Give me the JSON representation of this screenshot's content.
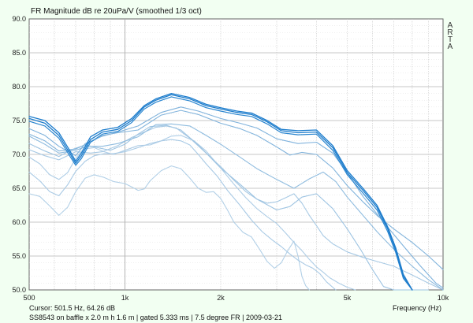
{
  "chart_data": {
    "type": "line",
    "title": "FR Magnitude dB re 20uPa/V (smoothed 1/3 oct)",
    "xlabel": "Frequency (Hz)",
    "ylabel": "",
    "xscale": "log",
    "xlim": [
      500,
      10000
    ],
    "ylim": [
      50,
      90
    ],
    "grid": true,
    "x_tick_labels": [
      {
        "v": 500,
        "label": "500"
      },
      {
        "v": 1000,
        "label": "1k"
      },
      {
        "v": 2000,
        "label": "2k"
      },
      {
        "v": 5000,
        "label": "5k"
      },
      {
        "v": 10000,
        "label": "10k"
      }
    ],
    "y_tick_labels": [
      {
        "v": 90,
        "label": "90.0"
      },
      {
        "v": 85,
        "label": "85.0"
      },
      {
        "v": 80,
        "label": "80.0"
      },
      {
        "v": 75,
        "label": "75.0"
      },
      {
        "v": 70,
        "label": "70.0"
      },
      {
        "v": 65,
        "label": "65.0"
      },
      {
        "v": 60,
        "label": "60.0"
      },
      {
        "v": 55,
        "label": "55.0"
      },
      {
        "v": 50,
        "label": "50.0"
      }
    ],
    "series": [
      {
        "color": "#1c7ccc",
        "width": 1.3,
        "x": [
          500,
          560,
          620,
          670,
          700,
          730,
          780,
          850,
          950,
          1050,
          1150,
          1250,
          1400,
          1600,
          1800,
          2000,
          2250,
          2500,
          2800,
          3100,
          3500,
          4000,
          4500,
          5000,
          5600,
          6200,
          6700,
          7100,
          7500,
          8000
        ],
        "y": [
          75.6,
          75.0,
          73.2,
          70.6,
          69.0,
          70.2,
          72.6,
          73.6,
          74.0,
          75.3,
          77.2,
          78.2,
          79.0,
          78.4,
          77.4,
          76.9,
          76.4,
          76.1,
          75.0,
          73.7,
          73.5,
          73.6,
          71.3,
          67.6,
          65.0,
          62.5,
          59.3,
          56.2,
          52.3,
          49.5
        ]
      },
      {
        "color": "#1c7ccc",
        "width": 1.3,
        "x": [
          500,
          560,
          620,
          670,
          700,
          730,
          780,
          850,
          950,
          1050,
          1150,
          1250,
          1400,
          1600,
          1800,
          2000,
          2250,
          2500,
          2800,
          3100,
          3500,
          4000,
          4500,
          5000,
          5600,
          6200,
          6700,
          7100,
          7500,
          8000
        ],
        "y": [
          75.3,
          74.6,
          72.8,
          70.2,
          68.7,
          69.8,
          72.2,
          73.3,
          73.7,
          75.0,
          77.0,
          78.0,
          78.8,
          78.2,
          77.2,
          76.7,
          76.2,
          75.9,
          74.8,
          73.5,
          73.2,
          73.3,
          71.0,
          67.3,
          64.7,
          62.2,
          59.0,
          55.9,
          52.0,
          49.5
        ]
      },
      {
        "color": "#2a86d0",
        "width": 1.2,
        "x": [
          500,
          560,
          620,
          670,
          700,
          730,
          780,
          850,
          950,
          1050,
          1150,
          1250,
          1400,
          1600,
          1800,
          2000,
          2250,
          2500,
          2800,
          3100,
          3500,
          4000,
          4500,
          5000,
          5600,
          6200,
          6700,
          7100,
          7500,
          8000
        ],
        "y": [
          74.9,
          74.2,
          72.4,
          69.8,
          68.4,
          69.4,
          71.8,
          73.0,
          73.4,
          74.7,
          76.7,
          77.7,
          78.5,
          77.9,
          76.9,
          76.4,
          75.9,
          75.6,
          74.5,
          73.2,
          72.9,
          73.0,
          70.6,
          67.0,
          64.3,
          61.8,
          58.6,
          55.5,
          51.7,
          49.5
        ]
      },
      {
        "color": "#7fb2dc",
        "width": 1.1,
        "x": [
          500,
          560,
          620,
          700,
          750,
          850,
          950,
          1100,
          1300,
          1500,
          1700,
          2000,
          2300,
          2600,
          3000,
          3500,
          4000,
          4500,
          5000,
          5600,
          6500,
          7500,
          8500,
          9500,
          10000
        ],
        "y": [
          73.8,
          72.8,
          71.2,
          69.8,
          71.6,
          72.7,
          73.3,
          74.2,
          76.2,
          77.0,
          76.4,
          75.3,
          74.6,
          73.9,
          72.3,
          71.6,
          71.8,
          70.2,
          67.3,
          63.8,
          60.0,
          56.5,
          53.5,
          51.0,
          50.3
        ]
      },
      {
        "color": "#82b4dc",
        "width": 1.1,
        "x": [
          500,
          560,
          620,
          700,
          780,
          850,
          950,
          1100,
          1300,
          1500,
          1700,
          2000,
          2300,
          2600,
          3000,
          3300,
          3600,
          4000,
          4500,
          5000,
          5600,
          6200,
          7000,
          8000,
          9000,
          10000
        ],
        "y": [
          73.0,
          72.0,
          70.5,
          70.8,
          71.8,
          72.8,
          73.2,
          73.6,
          75.8,
          76.5,
          75.9,
          74.6,
          73.8,
          72.8,
          71.1,
          69.9,
          70.3,
          70.0,
          68.0,
          65.4,
          63.0,
          61.0,
          59.0,
          57.0,
          55.0,
          53.0
        ]
      },
      {
        "color": "#8fbcdf",
        "width": 1.1,
        "x": [
          500,
          560,
          620,
          700,
          760,
          850,
          950,
          1100,
          1250,
          1400,
          1600,
          1800,
          2000,
          2300,
          2600,
          3000,
          3400,
          3800,
          4200,
          4600,
          5000,
          5600,
          6200,
          7000,
          8000,
          9000,
          10000
        ],
        "y": [
          72.7,
          71.5,
          70.2,
          70.6,
          71.2,
          71.2,
          71.6,
          72.6,
          74.4,
          74.5,
          74.2,
          72.8,
          71.5,
          69.6,
          67.9,
          66.3,
          65.0,
          66.4,
          67.4,
          66.0,
          63.7,
          61.0,
          58.6,
          56.0,
          53.5,
          51.5,
          50.0
        ]
      },
      {
        "color": "#9ec4e2",
        "width": 1.1,
        "x": [
          500,
          560,
          620,
          680,
          750,
          820,
          900,
          1000,
          1100,
          1200,
          1350,
          1500,
          1700,
          2000,
          2300,
          2600,
          3000,
          3300,
          3600,
          4000,
          4500,
          5000,
          5500,
          6000,
          6500,
          7000,
          8000,
          9000
        ],
        "y": [
          71.6,
          70.5,
          69.7,
          70.7,
          71.4,
          71.0,
          70.6,
          71.5,
          73.0,
          74.1,
          74.3,
          73.6,
          71.4,
          68.0,
          65.6,
          63.4,
          61.8,
          62.3,
          63.7,
          64.2,
          62.0,
          59.0,
          56.0,
          53.0,
          50.5,
          49.5,
          49.5,
          49.5
        ]
      },
      {
        "color": "#a7c9e4",
        "width": 1.1,
        "x": [
          500,
          560,
          620,
          700,
          780,
          850,
          950,
          1050,
          1150,
          1250,
          1350,
          1450,
          1600,
          1800,
          2000,
          2200,
          2400,
          2600,
          2800,
          3000,
          3200,
          3400,
          3600,
          3800,
          4000,
          4200,
          4500,
          5000,
          5600,
          6200,
          7000,
          8000,
          9000,
          10000
        ],
        "y": [
          70.7,
          69.8,
          69.2,
          70.4,
          70.2,
          70.4,
          71.3,
          72.5,
          73.3,
          74.0,
          74.2,
          73.9,
          72.4,
          70.2,
          68.2,
          66.2,
          64.5,
          63.4,
          62.8,
          63.0,
          63.6,
          64.2,
          62.8,
          61.0,
          59.5,
          58.0,
          56.8,
          55.6,
          54.8,
          54.2,
          53.5,
          52.2,
          51.0,
          50.0
        ]
      },
      {
        "color": "#aecde6",
        "width": 1.1,
        "x": [
          500,
          540,
          580,
          620,
          660,
          700,
          740,
          800,
          860,
          920,
          1000,
          1100,
          1200,
          1300,
          1400,
          1500,
          1650,
          1800,
          2000,
          2200,
          2400,
          2600,
          2800,
          3000,
          3200,
          3400,
          3600,
          3800,
          4000,
          4200,
          4400,
          4700,
          5000,
          5300
        ],
        "y": [
          69.6,
          68.6,
          67.0,
          66.3,
          67.3,
          69.4,
          70.8,
          71.0,
          70.4,
          70.0,
          70.6,
          71.3,
          71.4,
          72.0,
          72.7,
          72.8,
          72.0,
          70.5,
          68.0,
          65.6,
          63.6,
          62.0,
          60.8,
          59.8,
          58.4,
          57.0,
          55.8,
          54.5,
          53.4,
          52.6,
          51.8,
          51.0,
          50.4,
          50.0
        ]
      },
      {
        "color": "#a9cae5",
        "width": 1.1,
        "x": [
          500,
          540,
          580,
          620,
          660,
          700,
          750,
          800,
          860,
          920,
          1000,
          1100,
          1200,
          1300,
          1400,
          1500,
          1600,
          1700,
          1800,
          1950,
          2100,
          2300,
          2500,
          2700,
          2900,
          3100,
          3300,
          3500,
          3700,
          3900,
          4100,
          4300,
          4600
        ],
        "y": [
          67.4,
          66.1,
          64.5,
          63.9,
          65.5,
          67.5,
          69.0,
          69.8,
          70.1,
          70.1,
          70.4,
          71.0,
          71.6,
          72.0,
          72.2,
          72.0,
          71.4,
          70.0,
          68.6,
          66.8,
          64.7,
          62.5,
          60.3,
          58.6,
          57.4,
          56.4,
          55.3,
          54.4,
          53.7,
          53.2,
          52.4,
          51.2,
          50.0
        ]
      },
      {
        "color": "#b2d0e7",
        "width": 1.1,
        "x": [
          500,
          540,
          580,
          620,
          660,
          700,
          750,
          800,
          860,
          920,
          1000,
          1050,
          1100,
          1150,
          1200,
          1300,
          1400,
          1500,
          1600,
          1700,
          1800,
          1900,
          2000,
          2100,
          2200,
          2350,
          2500,
          2650,
          2800,
          2950,
          3100,
          3250,
          3400,
          3500,
          3600,
          3700,
          3800
        ],
        "y": [
          64.2,
          63.8,
          62.4,
          61.0,
          62.2,
          64.5,
          66.5,
          67.0,
          66.6,
          66.0,
          65.7,
          65.2,
          64.7,
          64.9,
          66.1,
          67.6,
          68.3,
          67.9,
          66.5,
          65.0,
          64.4,
          64.5,
          63.5,
          61.8,
          60.0,
          58.5,
          57.8,
          56.0,
          54.2,
          53.2,
          54.0,
          55.8,
          57.2,
          55.0,
          52.0,
          50.6,
          50.0
        ]
      }
    ]
  },
  "info": {
    "cursor": "Cursor: 501.5 Hz, 64.26 dB",
    "caption": "SS8543 on baffle x 2.0 m h 1.6 m | gated 5.333 ms | 7.5 degree FR | 2009-03-21"
  },
  "watermark": [
    "A",
    "R",
    "T",
    "A"
  ],
  "colors": {
    "background": "#f2fff2",
    "plot_background": "#ffffff",
    "grid": "#c8c8c8"
  }
}
